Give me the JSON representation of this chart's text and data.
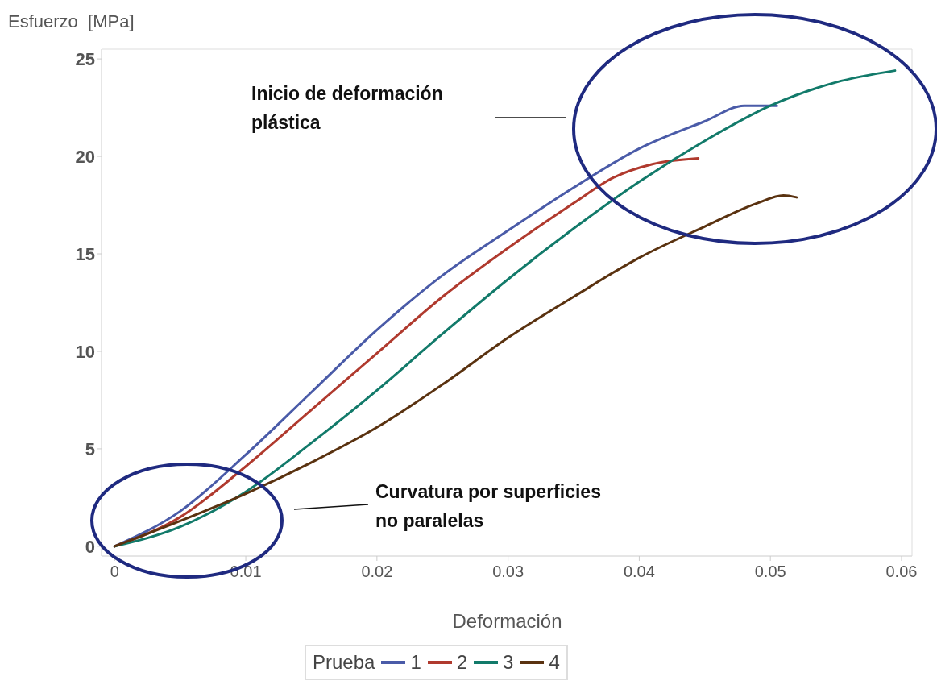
{
  "chart_data": {
    "type": "line",
    "xlabel": "Deformación",
    "ylabel": "Esfuerzo  [MPa]",
    "legend_title": "Prueba",
    "legend": "bottom",
    "grid": false,
    "marker": "none",
    "line_style": "solid",
    "xlim": [
      -0.001,
      0.0608
    ],
    "ylim": [
      -0.5,
      25.5
    ],
    "xticks": [
      0,
      0.01,
      0.02,
      0.03,
      0.04,
      0.05,
      0.06
    ],
    "yticks": [
      0,
      5,
      10,
      15,
      20,
      25
    ],
    "annotations": [
      "Inicio de deformación plástica",
      "Curvatura por superficies no paralelas"
    ],
    "series": [
      {
        "name": "1",
        "color": "#4a5ba8",
        "x": [
          0,
          0.005,
          0.01,
          0.015,
          0.02,
          0.025,
          0.03,
          0.035,
          0.04,
          0.045,
          0.048,
          0.0505
        ],
        "values": [
          0,
          1.8,
          4.7,
          7.9,
          11.1,
          13.9,
          16.2,
          18.4,
          20.4,
          21.8,
          22.6,
          22.6
        ]
      },
      {
        "name": "2",
        "color": "#b03a2e",
        "x": [
          0,
          0.005,
          0.01,
          0.015,
          0.02,
          0.025,
          0.03,
          0.035,
          0.038,
          0.041,
          0.0445
        ],
        "values": [
          0,
          1.5,
          4.1,
          7.0,
          9.9,
          12.8,
          15.3,
          17.6,
          18.9,
          19.6,
          19.9
        ]
      },
      {
        "name": "3",
        "color": "#127a6a",
        "x": [
          0,
          0.005,
          0.01,
          0.015,
          0.02,
          0.025,
          0.03,
          0.035,
          0.04,
          0.045,
          0.05,
          0.055,
          0.0595
        ],
        "values": [
          0,
          1.0,
          2.8,
          5.3,
          8.0,
          10.9,
          13.7,
          16.3,
          18.7,
          20.8,
          22.6,
          23.8,
          24.4
        ]
      },
      {
        "name": "4",
        "color": "#5a3210",
        "x": [
          0,
          0.005,
          0.01,
          0.015,
          0.02,
          0.025,
          0.03,
          0.035,
          0.04,
          0.045,
          0.049,
          0.051,
          0.052
        ],
        "values": [
          0,
          1.3,
          2.7,
          4.3,
          6.1,
          8.3,
          10.7,
          12.8,
          14.8,
          16.4,
          17.6,
          18.0,
          17.9
        ]
      }
    ]
  }
}
